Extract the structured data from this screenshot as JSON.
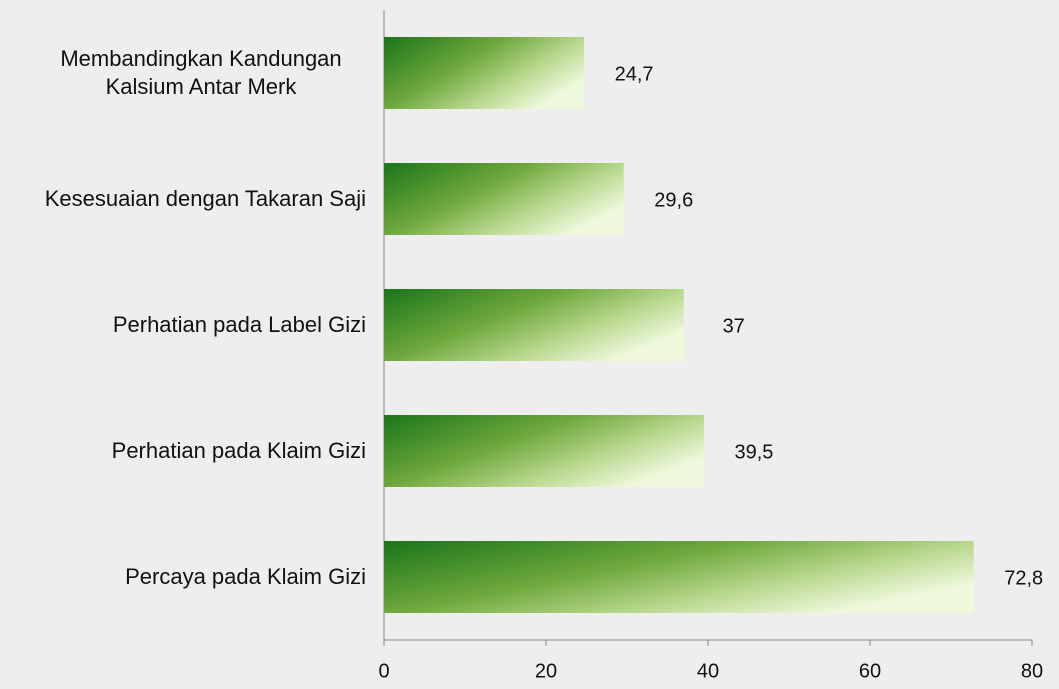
{
  "chart_data": {
    "type": "bar",
    "orientation": "horizontal",
    "categories": [
      "Membandingkan Kandungan Kalsium Antar Merk",
      "Kesesuaian dengan Takaran Saji",
      "Perhatian pada Label Gizi",
      "Perhatian pada Klaim Gizi",
      "Percaya pada Klaim Gizi"
    ],
    "values": [
      24.7,
      29.6,
      37,
      39.5,
      72.8
    ],
    "value_labels": [
      "24,7",
      "29,6",
      "37",
      "39,5",
      "72,8"
    ],
    "color": "#1e7a1e",
    "xlim": [
      0,
      80
    ],
    "xticks": [
      0,
      20,
      40,
      60,
      80
    ],
    "grid": false
  }
}
